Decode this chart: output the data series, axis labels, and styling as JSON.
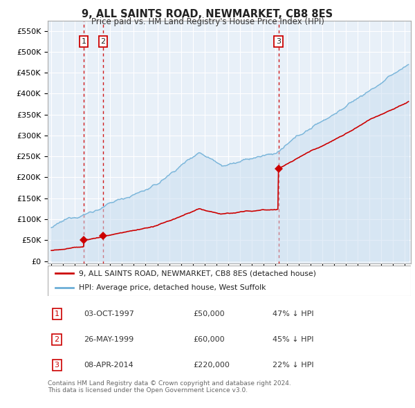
{
  "title": "9, ALL SAINTS ROAD, NEWMARKET, CB8 8ES",
  "subtitle": "Price paid vs. HM Land Registry's House Price Index (HPI)",
  "ylabel_ticks": [
    "£0",
    "£50K",
    "£100K",
    "£150K",
    "£200K",
    "£250K",
    "£300K",
    "£350K",
    "£400K",
    "£450K",
    "£500K",
    "£550K"
  ],
  "ytick_values": [
    0,
    50000,
    100000,
    150000,
    200000,
    250000,
    300000,
    350000,
    400000,
    450000,
    500000,
    550000
  ],
  "xlim_start": 1994.7,
  "xlim_end": 2025.5,
  "ylim_min": -5000,
  "ylim_max": 575000,
  "sales": [
    {
      "date_num": 1997.75,
      "price": 50000,
      "label": "1"
    },
    {
      "date_num": 1999.4,
      "price": 60000,
      "label": "2"
    },
    {
      "date_num": 2014.27,
      "price": 220000,
      "label": "3"
    }
  ],
  "vlines": [
    1997.75,
    1999.4,
    2014.27
  ],
  "sale_color": "#cc0000",
  "hpi_color": "#6baed6",
  "background_color": "#ffffff",
  "chart_bg_color": "#e8f0f8",
  "grid_color": "#cccccc",
  "legend_entries": [
    "9, ALL SAINTS ROAD, NEWMARKET, CB8 8ES (detached house)",
    "HPI: Average price, detached house, West Suffolk"
  ],
  "table_rows": [
    {
      "num": "1",
      "date": "03-OCT-1997",
      "price": "£50,000",
      "hpi": "47% ↓ HPI"
    },
    {
      "num": "2",
      "date": "26-MAY-1999",
      "price": "£60,000",
      "hpi": "45% ↓ HPI"
    },
    {
      "num": "3",
      "date": "08-APR-2014",
      "price": "£220,000",
      "hpi": "22% ↓ HPI"
    }
  ],
  "footer": "Contains HM Land Registry data © Crown copyright and database right 2024.\nThis data is licensed under the Open Government Licence v3.0."
}
